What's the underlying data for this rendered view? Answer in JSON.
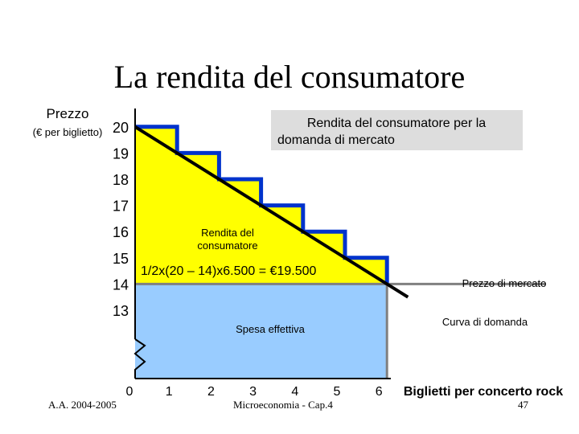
{
  "slide": {
    "title": "La rendita del consumatore",
    "footer_left": "A.A. 2004-2005",
    "footer_center": "Microeconomia - Cap.4",
    "page_number": "47"
  },
  "chart_data": {
    "type": "area",
    "ylabel": "Prezzo",
    "ylabel_unit": "(€ per biglietto)",
    "xlabel": "Biglietti per concerto rock",
    "y_ticks": [
      13,
      14,
      15,
      16,
      17,
      18,
      19,
      20
    ],
    "x_ticks": [
      0,
      1,
      2,
      3,
      4,
      5,
      6
    ],
    "xlim": [
      0,
      6.3
    ],
    "ylim": [
      12.5,
      20.5
    ],
    "axis_break": true,
    "demand_steps": [
      {
        "quantity": 1,
        "price": 20
      },
      {
        "quantity": 2,
        "price": 19
      },
      {
        "quantity": 3,
        "price": 18
      },
      {
        "quantity": 4,
        "price": 17
      },
      {
        "quantity": 5,
        "price": 16
      },
      {
        "quantity": 6,
        "price": 15
      }
    ],
    "demand_curve": {
      "x": [
        0,
        6.5
      ],
      "y": [
        20,
        13.5
      ],
      "label": "Curva di domanda"
    },
    "market_price": {
      "value": 14,
      "quantity": 6,
      "label": "Prezzo di mercato"
    },
    "areas": {
      "consumer_surplus_label": "Rendita del consumatore",
      "consumer_surplus_formula": "1/2x(20 – 14)x6.500 = €19.500",
      "expenditure_label": "Spesa effettiva"
    },
    "callout": "Rendita del consumatore per la domanda di mercato",
    "colors": {
      "surplus": "#ffff00",
      "expenditure": "#99ccff",
      "steps": "#0033cc",
      "demand": "#000000",
      "price_line": "#808080",
      "callout_bg": "#dddddd"
    }
  }
}
